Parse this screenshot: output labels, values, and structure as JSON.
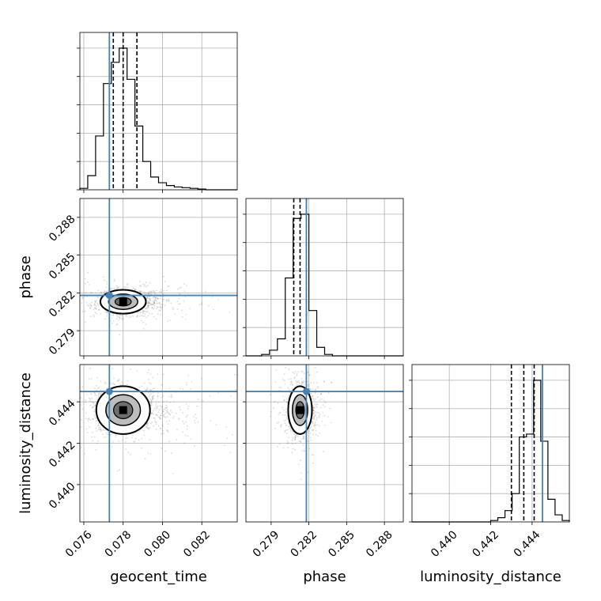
{
  "chart_data": {
    "type": "corner",
    "parameters": [
      "geocent_time",
      "phase",
      "luminosity_distance"
    ],
    "truths": {
      "geocent_time": 0.0773,
      "phase": 0.2818,
      "luminosity_distance": 0.4445
    },
    "ranges": {
      "geocent_time": [
        0.0758,
        0.0838
      ],
      "phase": [
        0.277,
        0.2895
      ],
      "luminosity_distance": [
        0.4382,
        0.4458
      ]
    },
    "ticks": {
      "geocent_time": [
        0.076,
        0.078,
        0.08,
        0.082
      ],
      "phase": [
        0.279,
        0.282,
        0.285,
        0.288
      ],
      "luminosity_distance": [
        0.44,
        0.442,
        0.444
      ]
    },
    "tick_labels": {
      "geocent_time": [
        "0.076",
        "0.078",
        "0.080",
        "0.082"
      ],
      "phase": [
        "0.279",
        "0.282",
        "0.285",
        "0.288"
      ],
      "luminosity_distance": [
        "0.440",
        "0.442",
        "0.444"
      ]
    },
    "quantiles": {
      "geocent_time": [
        0.0775,
        0.078,
        0.0787
      ],
      "phase": [
        0.2808,
        0.2813,
        0.2818
      ],
      "luminosity_distance": [
        0.443,
        0.4436,
        0.4441
      ]
    },
    "histograms": {
      "geocent_time": [
        0.01,
        0.1,
        0.38,
        0.75,
        0.9,
        1.0,
        0.78,
        0.45,
        0.2,
        0.09,
        0.05,
        0.03,
        0.02,
        0.015,
        0.01,
        0.005,
        0.0,
        0.0,
        0.0,
        0.0
      ],
      "phase": [
        0.0,
        0.0,
        0.01,
        0.04,
        0.12,
        0.55,
        0.97,
        1.0,
        0.32,
        0.06,
        0.01,
        0.0,
        0.0,
        0.0,
        0.0,
        0.0,
        0.0,
        0.0,
        0.0,
        0.0
      ],
      "luminosity_distance": [
        0.0,
        0.0,
        0.0,
        0.0,
        0.0,
        0.0,
        0.0,
        0.0,
        0.0,
        0.0,
        0.0,
        0.01,
        0.03,
        0.08,
        0.2,
        0.6,
        0.62,
        1.0,
        0.57,
        0.16,
        0.05,
        0.01
      ]
    },
    "centroids": {
      "geocent_time|phase": [
        0.078,
        0.2813,
        0.00055,
        0.00045
      ],
      "geocent_time|luminosity_distance": [
        0.078,
        0.4436,
        0.00065,
        0.00055
      ],
      "phase|luminosity_distance": [
        0.2813,
        0.4436,
        0.00045,
        0.00055
      ]
    },
    "truth_color": "#4682b4",
    "grid": true
  },
  "labels": {
    "x": [
      "geocent_time",
      "phase",
      "luminosity_distance"
    ],
    "y": [
      "phase",
      "luminosity_distance"
    ]
  }
}
